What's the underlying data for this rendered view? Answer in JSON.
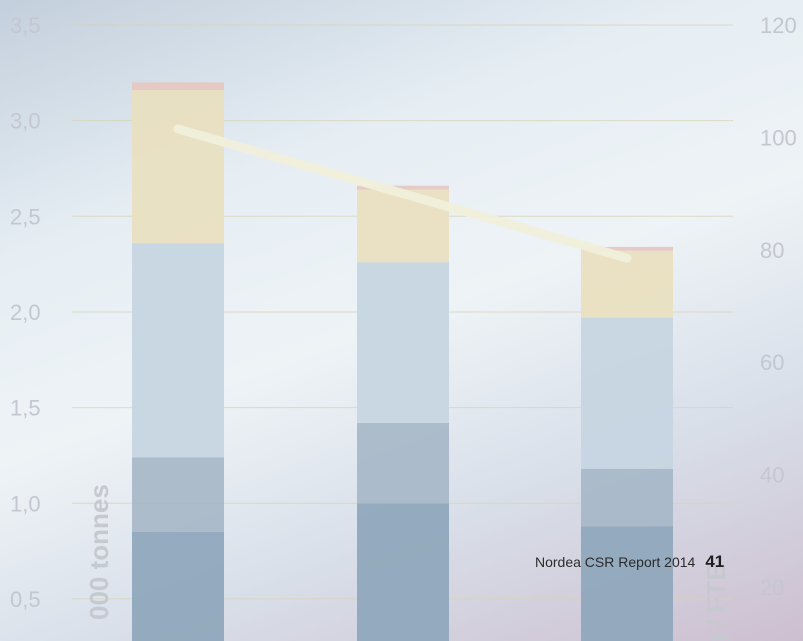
{
  "report": {
    "title": "Nordea CSR Report 2014",
    "page_number": "41"
  },
  "chart_data": {
    "type": "bar",
    "stacked": true,
    "categories": [
      "",
      "",
      ""
    ],
    "series": [
      {
        "values": [
          0.85,
          1.0,
          0.88
        ],
        "color": "#8ea6bb"
      },
      {
        "values": [
          0.39,
          0.42,
          0.3
        ],
        "color": "#a7b7c8"
      },
      {
        "values": [
          1.12,
          0.84,
          0.79
        ],
        "color": "#c5d5e1"
      },
      {
        "values": [
          0.8,
          0.38,
          0.35
        ],
        "color": "#e9dfbf"
      },
      {
        "values": [
          0.04,
          0.02,
          0.02
        ],
        "color": "#e5c7c1"
      }
    ],
    "line": {
      "values": [
        101.5,
        90,
        78.5
      ],
      "color": "#f0efdb",
      "axis": "y2"
    },
    "ylabel": "000 tonnes",
    "y2label": "g / FTE",
    "ylim": [
      0.5,
      3.5
    ],
    "yticks": [
      "0,5",
      "1,0",
      "1,5",
      "2,0",
      "2,5",
      "3,0",
      "3,5"
    ],
    "y2lim": [
      20,
      120
    ],
    "y2ticks": [
      "20",
      "40",
      "60",
      "80",
      "100",
      "120"
    ],
    "grid": true
  }
}
